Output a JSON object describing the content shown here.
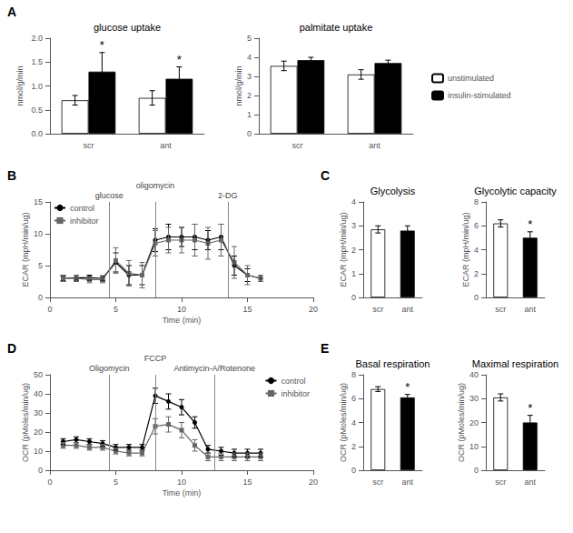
{
  "chart_data": [
    {
      "type": "bar",
      "title": "glucose uptake",
      "ylabel": "nmol/g/min",
      "categories": [
        "scr",
        "ant"
      ],
      "series": [
        {
          "name": "unstimulated",
          "color": "white",
          "values": [
            0.7,
            0.75
          ],
          "errors": [
            0.1,
            0.15
          ]
        },
        {
          "name": "insulin-stimulated",
          "color": "black",
          "values": [
            1.3,
            1.15
          ],
          "errors": [
            0.4,
            0.25
          ]
        }
      ],
      "ylim": [
        0,
        2.0
      ],
      "yticks": [
        {
          "value": 0,
          "label": "0.0"
        },
        0.5,
        {
          "value": 1,
          "label": "1.0"
        },
        1.5,
        {
          "value": 2,
          "label": "2.0"
        }
      ],
      "grid": false,
      "annotations": [
        {
          "text": "A"
        },
        {
          "text": "*",
          "category": "scr",
          "series": "insulin-stimulated"
        },
        {
          "text": "*",
          "category": "ant",
          "series": "insulin-stimulated"
        }
      ]
    },
    {
      "type": "bar",
      "title": "palmitate uptake",
      "ylabel": "nmol/g/min",
      "categories": [
        "scr",
        "ant"
      ],
      "series": [
        {
          "name": "unstimulated",
          "color": "white",
          "values": [
            3.55,
            3.1
          ],
          "errors": [
            0.25,
            0.25
          ]
        },
        {
          "name": "insulin-stimulated",
          "color": "black",
          "values": [
            3.85,
            3.7
          ],
          "errors": [
            0.15,
            0.15
          ]
        }
      ],
      "ylim": [
        0,
        5
      ],
      "yticks": [
        0,
        1,
        2,
        3,
        4,
        5
      ],
      "grid": false,
      "legend": "right"
    },
    {
      "type": "line",
      "xlabel": "Time (min)",
      "ylabel": "ECAR (mpH/min/ug)",
      "x": [
        1,
        2,
        3,
        4,
        5,
        6,
        7,
        8,
        9,
        10,
        11,
        12,
        13,
        14,
        15,
        16
      ],
      "series": [
        {
          "name": "control",
          "color": "black",
          "marker": "circle",
          "line_style": "solid",
          "values": [
            3.0,
            3.1,
            3.1,
            3.0,
            5.5,
            3.5,
            3.5,
            9.0,
            9.5,
            9.5,
            9.5,
            9.0,
            9.5,
            5.0,
            3.5,
            3.0
          ],
          "errors": [
            0.4,
            0.4,
            0.4,
            0.4,
            1.5,
            1.5,
            1.5,
            1.8,
            2.0,
            1.5,
            2.0,
            1.5,
            2.0,
            1.5,
            1.0,
            0.5
          ]
        },
        {
          "name": "inhibitor",
          "color": "#666666",
          "marker": "square",
          "line_style": "solid",
          "values": [
            3.0,
            3.0,
            2.8,
            2.8,
            5.8,
            3.8,
            3.5,
            8.5,
            9.0,
            9.0,
            9.0,
            8.5,
            9.0,
            5.5,
            3.5,
            3.0
          ],
          "errors": [
            0.5,
            0.5,
            0.5,
            0.5,
            2.0,
            2.0,
            2.0,
            2.0,
            2.0,
            2.0,
            2.5,
            2.5,
            2.5,
            2.5,
            1.5,
            0.5
          ]
        }
      ],
      "xlim": [
        0,
        20
      ],
      "xticks": [
        0,
        5,
        10,
        15,
        20
      ],
      "ylim": [
        0,
        15
      ],
      "yticks": [
        0,
        5,
        10,
        15
      ],
      "grid": false,
      "legend": "upper left",
      "annotations": [
        {
          "text": "B"
        },
        {
          "text": "glucose",
          "x": 4.5
        },
        {
          "text": "oligomycin",
          "x": 8.0
        },
        {
          "text": "2-DG",
          "x": 13.5
        }
      ]
    },
    {
      "type": "bar",
      "title": "Glycolysis",
      "ylabel": "ECAR (mpH/min/ug)",
      "categories": [
        "scr",
        "ant"
      ],
      "values": [
        2.85,
        2.8
      ],
      "errors": [
        0.15,
        0.2
      ],
      "colors": [
        "white",
        "black"
      ],
      "ylim": [
        0,
        4
      ],
      "yticks": [
        0,
        1,
        2,
        3,
        4
      ],
      "grid": false,
      "annotations": [
        {
          "text": "C"
        }
      ]
    },
    {
      "type": "bar",
      "title": "Glycolytic capacity",
      "ylabel": "ECAR (mpH/min/ug)",
      "categories": [
        "scr",
        "ant"
      ],
      "values": [
        6.2,
        5.0
      ],
      "errors": [
        0.3,
        0.5
      ],
      "colors": [
        "white",
        "black"
      ],
      "ylim": [
        0,
        8
      ],
      "yticks": [
        0,
        2,
        4,
        6,
        8
      ],
      "grid": false,
      "annotations": [
        {
          "text": "*",
          "category": "ant"
        }
      ]
    },
    {
      "type": "line",
      "xlabel": "Time (min)",
      "ylabel": "OCR (pMoles/min/ug)",
      "x": [
        1,
        2,
        3,
        4,
        5,
        6,
        7,
        8,
        9,
        10,
        11,
        12,
        13,
        14,
        15,
        16
      ],
      "series": [
        {
          "name": "control",
          "color": "black",
          "marker": "circle",
          "line_style": "solid",
          "values": [
            15,
            16,
            15,
            14,
            12,
            12,
            12,
            39,
            36,
            33,
            25,
            11,
            10,
            9,
            9,
            9
          ],
          "errors": [
            1.5,
            1.5,
            1.5,
            1.5,
            1.5,
            1.5,
            1.5,
            4,
            4,
            4,
            3,
            2,
            2,
            2,
            2,
            2
          ]
        },
        {
          "name": "inhibitor",
          "color": "#666666",
          "marker": "square",
          "line_style": "solid",
          "values": [
            13,
            13,
            12,
            12,
            10,
            9,
            9,
            23,
            24,
            21,
            13,
            7,
            7,
            7,
            7,
            7
          ],
          "errors": [
            1.5,
            1.5,
            1.5,
            1.5,
            1.5,
            1.5,
            1.5,
            4,
            4,
            4,
            3,
            2,
            2,
            2,
            2,
            2
          ]
        }
      ],
      "xlim": [
        0,
        20
      ],
      "xticks": [
        0,
        5,
        10,
        15,
        20
      ],
      "ylim": [
        0,
        50
      ],
      "yticks": [
        0,
        10,
        20,
        30,
        40,
        50
      ],
      "grid": false,
      "legend": "upper right",
      "annotations": [
        {
          "text": "D"
        },
        {
          "text": "Oligomycin",
          "x": 4.5
        },
        {
          "text": "FCCP",
          "x": 8.0
        },
        {
          "text": "Antimycin-A/Rotenone",
          "x": 12.5
        }
      ]
    },
    {
      "type": "bar",
      "title": "Basal respiration",
      "ylabel": "OCR (pMoles/min/ug)",
      "categories": [
        "scr",
        "ant"
      ],
      "values": [
        6.8,
        6.1
      ],
      "errors": [
        0.2,
        0.25
      ],
      "colors": [
        "white",
        "black"
      ],
      "ylim": [
        0,
        8
      ],
      "yticks": [
        0,
        2,
        4,
        6,
        8
      ],
      "grid": false,
      "annotations": [
        {
          "text": "E"
        },
        {
          "text": "*",
          "category": "ant"
        }
      ]
    },
    {
      "type": "bar",
      "title": "Maximal respiration",
      "ylabel": "OCR (pMoles/min/ug)",
      "categories": [
        "scr",
        "ant"
      ],
      "values": [
        30.5,
        20.0
      ],
      "errors": [
        1.5,
        3.0
      ],
      "colors": [
        "white",
        "black"
      ],
      "ylim": [
        0,
        40
      ],
      "yticks": [
        0,
        10,
        20,
        30,
        40
      ],
      "grid": false,
      "annotations": [
        {
          "text": "*",
          "category": "ant"
        }
      ]
    }
  ]
}
